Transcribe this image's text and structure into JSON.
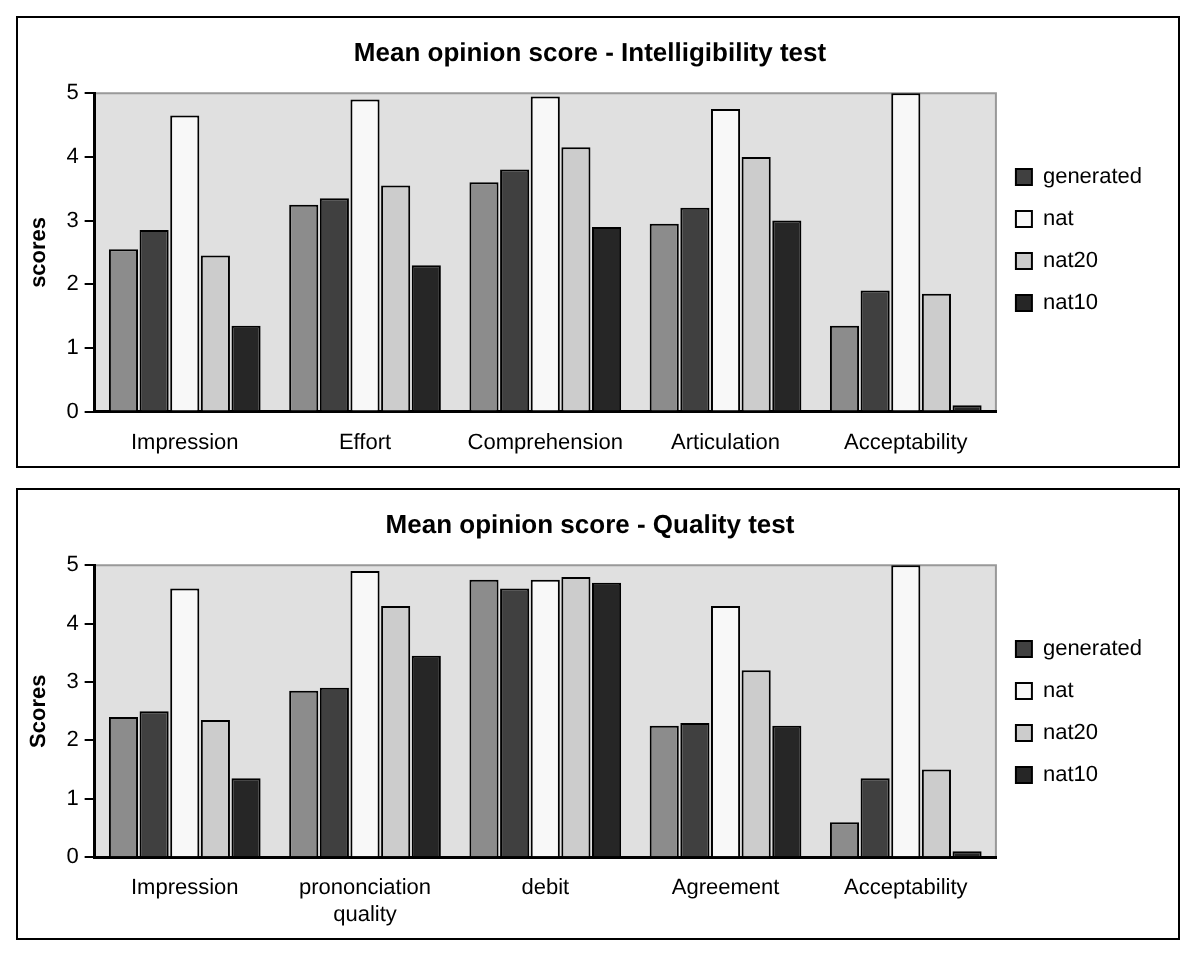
{
  "chart_data": [
    {
      "type": "bar",
      "title": "Mean opinion score - Intelligibility test",
      "ylabel": "scores",
      "categories": [
        "Impression",
        "Effort",
        "Comprehension",
        "Articulation",
        "Acceptability"
      ],
      "ylim": [
        0,
        5
      ],
      "yticks": [
        0,
        1,
        2,
        3,
        4,
        5
      ],
      "grid": false,
      "legend": "right",
      "series": [
        {
          "color": "#8c8c8c",
          "values": [
            2.55,
            3.25,
            3.6,
            2.95,
            1.35
          ]
        },
        {
          "name": "generated",
          "color": "#404040",
          "values": [
            2.85,
            3.35,
            3.8,
            3.2,
            1.9
          ]
        },
        {
          "name": "nat",
          "color": "#f8f8f8",
          "values": [
            4.65,
            4.9,
            4.95,
            4.75,
            5.0
          ]
        },
        {
          "name": "nat20",
          "color": "#cccccc",
          "values": [
            2.45,
            3.55,
            4.15,
            4.0,
            1.85
          ]
        },
        {
          "name": "nat10",
          "color": "#262626",
          "values": [
            1.35,
            2.3,
            2.9,
            3.0,
            0.1
          ]
        }
      ]
    },
    {
      "type": "bar",
      "title": "Mean opinion score - Quality test",
      "ylabel": "Scores",
      "categories": [
        "Impression",
        "prononciation quality",
        "debit",
        "Agreement",
        "Acceptability"
      ],
      "ylim": [
        0,
        5
      ],
      "yticks": [
        0,
        1,
        2,
        3,
        4,
        5
      ],
      "grid": false,
      "legend": "right",
      "series": [
        {
          "color": "#8c8c8c",
          "values": [
            2.4,
            2.85,
            4.75,
            2.25,
            0.6
          ]
        },
        {
          "name": "generated",
          "color": "#404040",
          "values": [
            2.5,
            2.9,
            4.6,
            2.3,
            1.35
          ]
        },
        {
          "name": "nat",
          "color": "#f8f8f8",
          "values": [
            4.6,
            4.9,
            4.75,
            4.3,
            5.0
          ]
        },
        {
          "name": "nat20",
          "color": "#cccccc",
          "values": [
            2.35,
            4.3,
            4.8,
            3.2,
            1.5
          ]
        },
        {
          "name": "nat10",
          "color": "#262626",
          "values": [
            1.35,
            3.45,
            4.7,
            2.25,
            0.1
          ]
        }
      ]
    }
  ]
}
